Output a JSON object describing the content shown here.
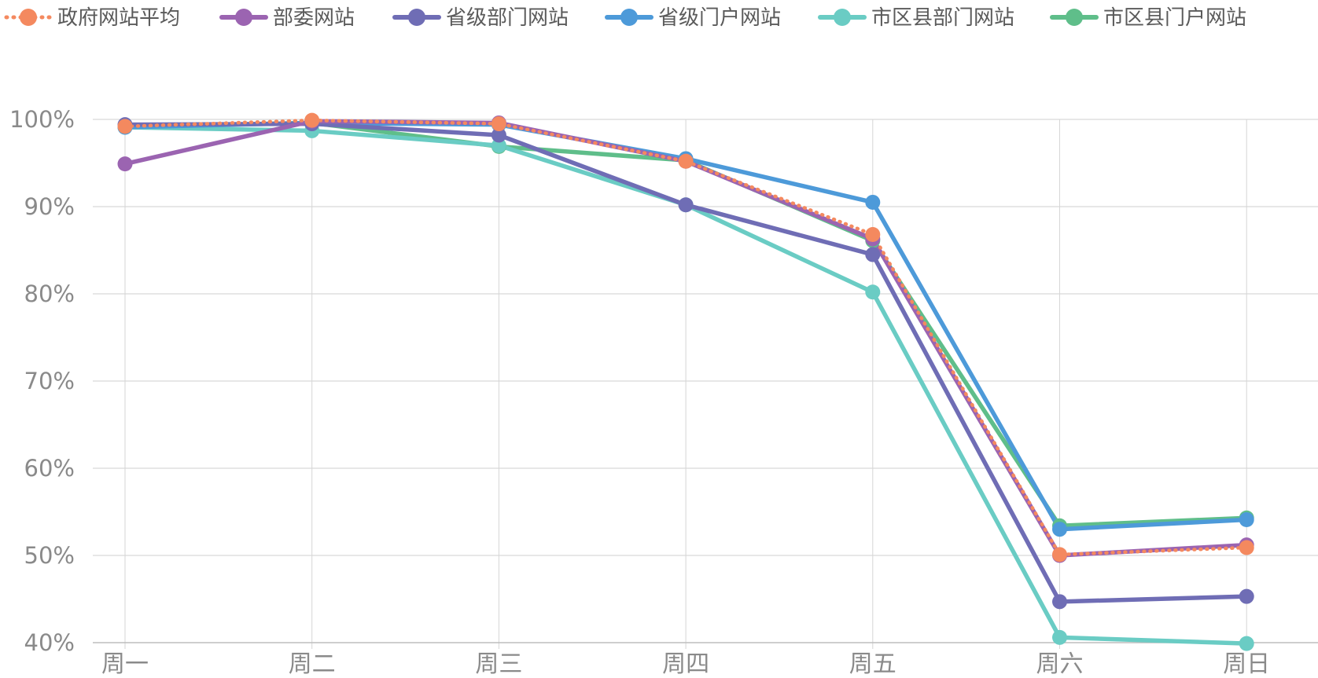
{
  "chart_data": {
    "type": "line",
    "title": "",
    "xlabel": "",
    "ylabel": "",
    "categories": [
      "周一",
      "周二",
      "周三",
      "周四",
      "周五",
      "周六",
      "周日"
    ],
    "ylim": [
      40,
      100
    ],
    "y_ticks": [
      40,
      50,
      60,
      70,
      80,
      90,
      100
    ],
    "y_tick_labels": [
      "40%",
      "50%",
      "60%",
      "70%",
      "80%",
      "90%",
      "100%"
    ],
    "grid": true,
    "legend_position": "top-left",
    "series": [
      {
        "name": "政府网站平均",
        "color": "#f4895f",
        "dashed": true,
        "values": [
          99.2,
          99.9,
          99.5,
          95.2,
          86.8,
          50.1,
          50.9
        ]
      },
      {
        "name": "部委网站",
        "color": "#9b64b1",
        "values": [
          94.9,
          99.8,
          99.6,
          95.2,
          86.3,
          50.0,
          51.2
        ]
      },
      {
        "name": "省级部门网站",
        "color": "#6f6db5",
        "values": [
          99.4,
          99.5,
          98.2,
          90.2,
          84.5,
          44.7,
          45.3
        ]
      },
      {
        "name": "省级门户网站",
        "color": "#4d9ad9",
        "values": [
          99.1,
          99.6,
          99.4,
          95.5,
          90.5,
          53.0,
          54.1
        ]
      },
      {
        "name": "市区县部门网站",
        "color": "#6accc4",
        "values": [
          99.1,
          98.7,
          97.0,
          90.2,
          80.2,
          40.6,
          39.9
        ]
      },
      {
        "name": "市区县门户网站",
        "color": "#5fbe8a",
        "values": [
          99.2,
          99.6,
          96.9,
          95.3,
          86.1,
          53.4,
          54.3
        ]
      }
    ]
  }
}
